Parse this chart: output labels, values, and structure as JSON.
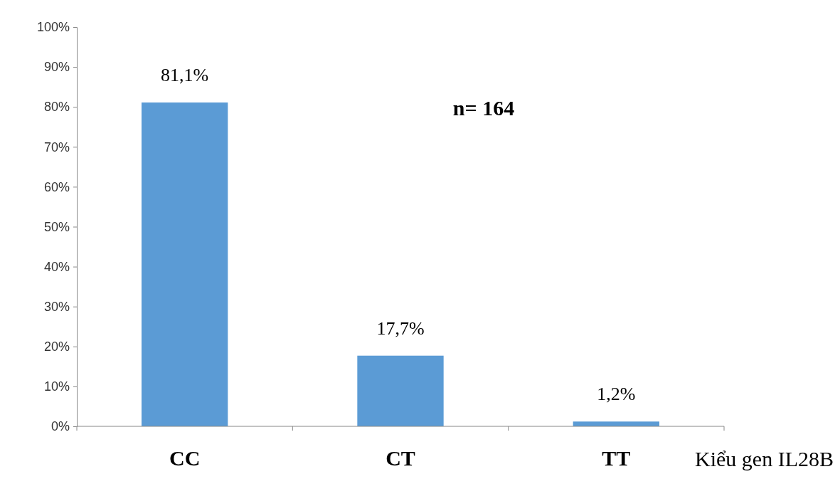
{
  "chart_data": {
    "type": "bar",
    "categories": [
      "CC",
      "CT",
      "TT"
    ],
    "values": [
      81.1,
      17.7,
      1.2
    ],
    "color": "#5b9bd5",
    "value_labels": [
      "81,1%",
      "17,7%",
      "1,2%"
    ],
    "ylim": [
      0,
      100
    ],
    "yticks": [
      {
        "value": 0,
        "label": "0%"
      },
      {
        "value": 10,
        "label": "10%"
      },
      {
        "value": 20,
        "label": "20%"
      },
      {
        "value": 30,
        "label": "30%"
      },
      {
        "value": 40,
        "label": "40%"
      },
      {
        "value": 50,
        "label": "50%"
      },
      {
        "value": 60,
        "label": "60%"
      },
      {
        "value": 70,
        "label": "70%"
      },
      {
        "value": 80,
        "label": "80%"
      },
      {
        "value": 90,
        "label": "90%"
      },
      {
        "value": 100,
        "label": "100%"
      }
    ],
    "xlabel": "Kiểu gen IL28B",
    "annotations": [
      "n= 164"
    ]
  }
}
